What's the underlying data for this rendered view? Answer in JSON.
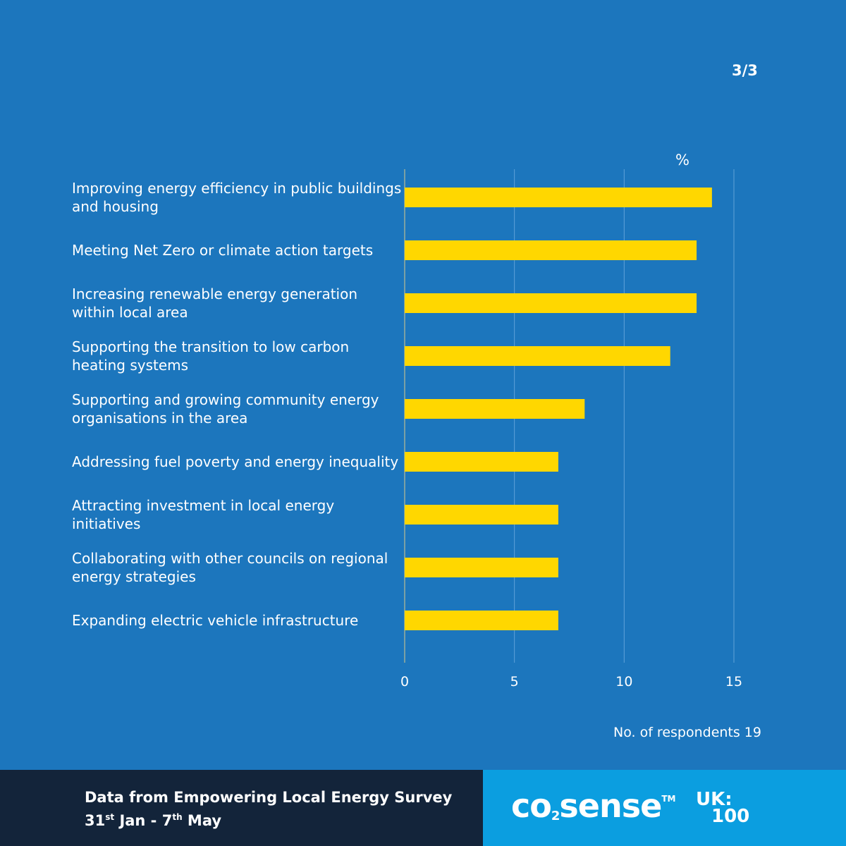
{
  "page_indicator": "3/3",
  "footer": {
    "source_line1": "Data from Empowering Local Energy Survey",
    "date_start_day": "31",
    "date_start_suffix": "st",
    "date_start_month": "Jan - 7",
    "date_end_suffix": "th",
    "date_end_month": "May",
    "logo_co2": "co",
    "logo_co2_sub": "2",
    "logo_co2_rest": "sense",
    "logo_co2_tm": "TM",
    "logo_uk": "UK:",
    "logo_uk_hundred": "100"
  },
  "chart_data": {
    "type": "bar",
    "orientation": "horizontal",
    "unit_label": "%",
    "categories": [
      "Improving energy efficiency in public buildings and housing",
      "Meeting Net Zero or climate action targets",
      "Increasing renewable energy generation within local area",
      "Supporting the transition to low carbon heating systems",
      "Supporting and growing community energy organisations in the area",
      "Addressing fuel poverty and energy inequality",
      "Attracting investment in local energy initiatives",
      "Collaborating with other councils on regional energy strategies",
      "Expanding electric vehicle infrastructure"
    ],
    "values": [
      14,
      13.3,
      13.3,
      12.1,
      8.2,
      7,
      7,
      7,
      7
    ],
    "xlim": [
      0,
      15
    ],
    "xticks": [
      "0",
      "5",
      "10",
      "15"
    ],
    "grid": true,
    "bar_color": "#ffd700",
    "note": "No. of respondents 19"
  }
}
